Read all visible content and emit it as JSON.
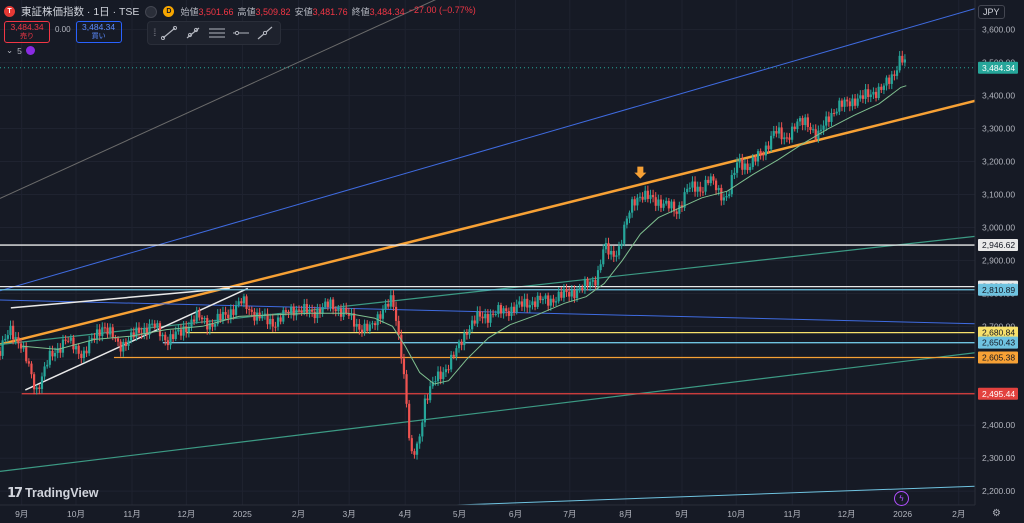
{
  "header": {
    "symbol_badge": "T",
    "title": "東証株価指数 · 1日 · TSE",
    "interval_badge": "D",
    "ohlc": [
      {
        "label": "始値",
        "value": "3,501.66"
      },
      {
        "label": "高値",
        "value": "3,509.82"
      },
      {
        "label": "安値",
        "value": "3,481.76"
      },
      {
        "label": "終値",
        "value": "3,484.34"
      },
      {
        "label": "",
        "value": "−27.00 (−0.77%)"
      }
    ]
  },
  "trade": {
    "sell_price": "3,484.34",
    "sell_label": "売り",
    "spread": "0.00",
    "buy_price": "3,484.34",
    "buy_label": "買い"
  },
  "indicators": {
    "count": "5"
  },
  "currency": "JPY",
  "logo": "TradingView",
  "colors": {
    "background": "#161a25",
    "up": "#26a69a",
    "down": "#ef5350",
    "orange": "#f7a135",
    "blue": "#3f6be0",
    "teal": "#3c9a84",
    "white": "#e9e9e9",
    "yellow": "#f7e06b",
    "cyan": "#6fc3e0",
    "red": "#e3423f",
    "amber": "#f7a135"
  },
  "chart_data": {
    "type": "candlestick",
    "y_ticks": [
      2200,
      2300,
      2400,
      2500,
      2600,
      2700,
      2800,
      2900,
      3000,
      3100,
      3200,
      3300,
      3400,
      3500,
      3600
    ],
    "y_tick_labels": [
      "2,200.00",
      "2,300.00",
      "2,400.00",
      "2,500.00",
      "2,600.00",
      "2,700.00",
      "2,800.00",
      "2,900.00",
      "3,000.00",
      "3,100.00",
      "3,200.00",
      "3,300.00",
      "3,400.00",
      "3,500.00",
      "3,600.00"
    ],
    "ylim": [
      2158,
      3690
    ],
    "x_labels": [
      {
        "label": "9月",
        "day": 0
      },
      {
        "label": "10月",
        "day": 30
      },
      {
        "label": "11月",
        "day": 61
      },
      {
        "label": "12月",
        "day": 91
      },
      {
        "label": "2025",
        "day": 122
      },
      {
        "label": "2月",
        "day": 153
      },
      {
        "label": "3月",
        "day": 181
      },
      {
        "label": "4月",
        "day": 212
      },
      {
        "label": "5月",
        "day": 242
      },
      {
        "label": "6月",
        "day": 273
      },
      {
        "label": "7月",
        "day": 303
      },
      {
        "label": "8月",
        "day": 334
      },
      {
        "label": "9月",
        "day": 365
      },
      {
        "label": "10月",
        "day": 395
      },
      {
        "label": "11月",
        "day": 426
      },
      {
        "label": "12月",
        "day": 456
      },
      {
        "label": "2026",
        "day": 487
      },
      {
        "label": "2月",
        "day": 518
      }
    ],
    "price_path": [
      [
        -12,
        2625
      ],
      [
        -6,
        2690
      ],
      [
        0,
        2640
      ],
      [
        8,
        2505
      ],
      [
        15,
        2600
      ],
      [
        24,
        2660
      ],
      [
        34,
        2615
      ],
      [
        45,
        2705
      ],
      [
        54,
        2640
      ],
      [
        64,
        2680
      ],
      [
        72,
        2705
      ],
      [
        80,
        2660
      ],
      [
        88,
        2680
      ],
      [
        96,
        2730
      ],
      [
        105,
        2705
      ],
      [
        114,
        2740
      ],
      [
        122,
        2775
      ],
      [
        130,
        2730
      ],
      [
        140,
        2710
      ],
      [
        150,
        2755
      ],
      [
        160,
        2740
      ],
      [
        170,
        2765
      ],
      [
        178,
        2745
      ],
      [
        186,
        2700
      ],
      [
        193,
        2690
      ],
      [
        200,
        2760
      ],
      [
        205,
        2775
      ],
      [
        210,
        2620
      ],
      [
        213,
        2460
      ],
      [
        215,
        2295
      ],
      [
        219,
        2335
      ],
      [
        223,
        2480
      ],
      [
        228,
        2530
      ],
      [
        234,
        2570
      ],
      [
        240,
        2620
      ],
      [
        246,
        2690
      ],
      [
        252,
        2725
      ],
      [
        262,
        2740
      ],
      [
        272,
        2755
      ],
      [
        282,
        2775
      ],
      [
        292,
        2780
      ],
      [
        302,
        2800
      ],
      [
        310,
        2815
      ],
      [
        318,
        2850
      ],
      [
        322,
        2940
      ],
      [
        326,
        2915
      ],
      [
        330,
        2935
      ],
      [
        334,
        3010
      ],
      [
        338,
        3080
      ],
      [
        342,
        3100
      ],
      [
        348,
        3085
      ],
      [
        355,
        3075
      ],
      [
        362,
        3045
      ],
      [
        368,
        3120
      ],
      [
        375,
        3115
      ],
      [
        380,
        3150
      ],
      [
        386,
        3100
      ],
      [
        390,
        3095
      ],
      [
        396,
        3200
      ],
      [
        402,
        3185
      ],
      [
        410,
        3230
      ],
      [
        416,
        3290
      ],
      [
        422,
        3270
      ],
      [
        428,
        3310
      ],
      [
        434,
        3325
      ],
      [
        440,
        3270
      ],
      [
        446,
        3340
      ],
      [
        452,
        3365
      ],
      [
        458,
        3385
      ],
      [
        464,
        3390
      ],
      [
        470,
        3410
      ],
      [
        476,
        3420
      ],
      [
        482,
        3465
      ],
      [
        486,
        3520
      ],
      [
        489,
        3484
      ]
    ],
    "moving_average": [
      [
        0,
        2640
      ],
      [
        20,
        2630
      ],
      [
        40,
        2660
      ],
      [
        60,
        2670
      ],
      [
        80,
        2690
      ],
      [
        100,
        2700
      ],
      [
        120,
        2730
      ],
      [
        140,
        2735
      ],
      [
        160,
        2740
      ],
      [
        180,
        2740
      ],
      [
        195,
        2725
      ],
      [
        205,
        2700
      ],
      [
        212,
        2640
      ],
      [
        220,
        2560
      ],
      [
        228,
        2525
      ],
      [
        236,
        2535
      ],
      [
        246,
        2600
      ],
      [
        258,
        2665
      ],
      [
        270,
        2705
      ],
      [
        285,
        2735
      ],
      [
        300,
        2770
      ],
      [
        312,
        2790
      ],
      [
        322,
        2830
      ],
      [
        332,
        2900
      ],
      [
        342,
        2980
      ],
      [
        352,
        3030
      ],
      [
        364,
        3060
      ],
      [
        376,
        3090
      ],
      [
        390,
        3110
      ],
      [
        404,
        3160
      ],
      [
        418,
        3205
      ],
      [
        432,
        3255
      ],
      [
        446,
        3300
      ],
      [
        460,
        3340
      ],
      [
        474,
        3375
      ],
      [
        486,
        3425
      ],
      [
        489,
        3430
      ]
    ],
    "horizontal_levels": [
      {
        "price": 2946.62,
        "label": "2,946.62",
        "color": "#e9e9e9"
      },
      {
        "price": 2820.4,
        "label": "2,820.40",
        "color": "#e9e9e9"
      },
      {
        "price": 2810.89,
        "label": "2,810.89",
        "color": "#6fc3e0"
      },
      {
        "price": 2680.84,
        "label": "2,680.84",
        "color": "#f7e06b"
      },
      {
        "price": 2650.43,
        "label": "2,650.43",
        "color": "#6fc3e0"
      },
      {
        "price": 2605.38,
        "label": "2,605.38",
        "color": "#f7a135"
      },
      {
        "price": 2495.44,
        "label": "2,495.44",
        "color": "#e3423f"
      }
    ],
    "current_price": {
      "price": 3484.34,
      "label": "3,484.34",
      "color": "#26a69a"
    },
    "trend_lines": [
      {
        "name": "gray-trendline",
        "from": [
          -12,
          3088
        ],
        "to": [
          420,
          4170
        ],
        "color": "#6b6b6b",
        "width": 1
      },
      {
        "name": "blue-upper-channel",
        "from": [
          -12,
          2808
        ],
        "to": [
          527,
          3664
        ],
        "color": "#3f6be0",
        "width": 1
      },
      {
        "name": "orange-main-trendline",
        "from": [
          -12,
          2645
        ],
        "to": [
          527,
          3384
        ],
        "color": "#f7a135",
        "width": 2.5
      },
      {
        "name": "teal-upper-trendline",
        "from": [
          -12,
          2645
        ],
        "to": [
          527,
          2973
        ],
        "color": "#3c9a84",
        "width": 1.2
      },
      {
        "name": "blue-declining-line",
        "from": [
          -12,
          2780
        ],
        "to": [
          527,
          2708
        ],
        "color": "#3f6be0",
        "width": 1
      },
      {
        "name": "teal-lower-trendline",
        "from": [
          -12,
          2260
        ],
        "to": [
          527,
          2620
        ],
        "color": "#3c9a84",
        "width": 1.2
      },
      {
        "name": "cyan-bottom-trendline",
        "from": [
          150,
          2140
        ],
        "to": [
          527,
          2215
        ],
        "color": "#6fc3e0",
        "width": 1
      },
      {
        "name": "white-wedge-upper",
        "from": [
          -6,
          2756
        ],
        "to": [
          115,
          2815
        ],
        "color": "#e9e9e9",
        "width": 1.5
      },
      {
        "name": "white-wedge-lower",
        "from": [
          2,
          2507
        ],
        "to": [
          125,
          2815
        ],
        "color": "#e9e9e9",
        "width": 1.5
      }
    ],
    "short_segments": [
      {
        "price": 2680.84,
        "from_day": 91,
        "to_day": 527,
        "color": "#f7e06b"
      },
      {
        "price": 2650.43,
        "from_day": 78,
        "to_day": 527,
        "color": "#6fc3e0"
      },
      {
        "price": 2605.38,
        "from_day": 51,
        "to_day": 527,
        "color": "#f7a135"
      },
      {
        "price": 2495.44,
        "from_day": 0,
        "to_day": 527,
        "color": "#e3423f"
      }
    ],
    "annotation_arrow": {
      "day": 342,
      "price": 3148,
      "color": "#f7a135"
    }
  }
}
